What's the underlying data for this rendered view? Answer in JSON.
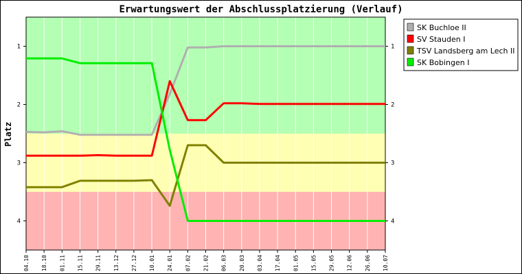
{
  "chart_data": {
    "type": "line",
    "title": "Erwartungswert der Abschlussplatzierung (Verlauf)",
    "ylabel": "Platz",
    "xlabel": "",
    "ylim": [
      4.5,
      0.5
    ],
    "y_inverted": true,
    "yticks": [
      1,
      2,
      3,
      4
    ],
    "bands": [
      {
        "from": 0.5,
        "to": 2.5,
        "color": "#b3ffb3"
      },
      {
        "from": 2.5,
        "to": 3.5,
        "color": "#ffffb3"
      },
      {
        "from": 3.5,
        "to": 4.5,
        "color": "#ffb3b3"
      }
    ],
    "categories": [
      "04.10",
      "18.10",
      "01.11",
      "15.11",
      "29.11",
      "13.12",
      "27.12",
      "10.01",
      "24.01",
      "07.02",
      "21.02",
      "06.03",
      "20.03",
      "03.04",
      "17.04",
      "01.05",
      "15.05",
      "29.05",
      "12.06",
      "26.06",
      "10.07"
    ],
    "legend_position": "right",
    "series": [
      {
        "name": "SK Buchloe II",
        "color": "#b0b0b0",
        "values": [
          2.47,
          2.48,
          2.46,
          2.52,
          2.52,
          2.52,
          2.52,
          2.52,
          1.82,
          1.02,
          1.02,
          1.0,
          1.0,
          1.0,
          1.0,
          1.0,
          1.0,
          1.0,
          1.0,
          1.0,
          1.0
        ]
      },
      {
        "name": "SV Stauden I",
        "color": "#ff0000",
        "values": [
          2.88,
          2.88,
          2.88,
          2.88,
          2.87,
          2.88,
          2.88,
          2.88,
          1.6,
          2.27,
          2.27,
          1.98,
          1.98,
          1.99,
          1.99,
          1.99,
          1.99,
          1.99,
          1.99,
          1.99,
          1.99
        ]
      },
      {
        "name": "TSV Landsberg am Lech II",
        "color": "#808000",
        "values": [
          3.42,
          3.42,
          3.42,
          3.31,
          3.31,
          3.31,
          3.31,
          3.3,
          3.74,
          2.7,
          2.7,
          3.0,
          3.0,
          3.0,
          3.0,
          3.0,
          3.0,
          3.0,
          3.0,
          3.0,
          3.0
        ]
      },
      {
        "name": "SK Bobingen I",
        "color": "#00ee00",
        "values": [
          1.21,
          1.21,
          1.21,
          1.29,
          1.29,
          1.29,
          1.29,
          1.29,
          2.78,
          4.0,
          4.0,
          4.0,
          4.0,
          4.0,
          4.0,
          4.0,
          4.0,
          4.0,
          4.0,
          4.0,
          4.0
        ]
      }
    ]
  }
}
